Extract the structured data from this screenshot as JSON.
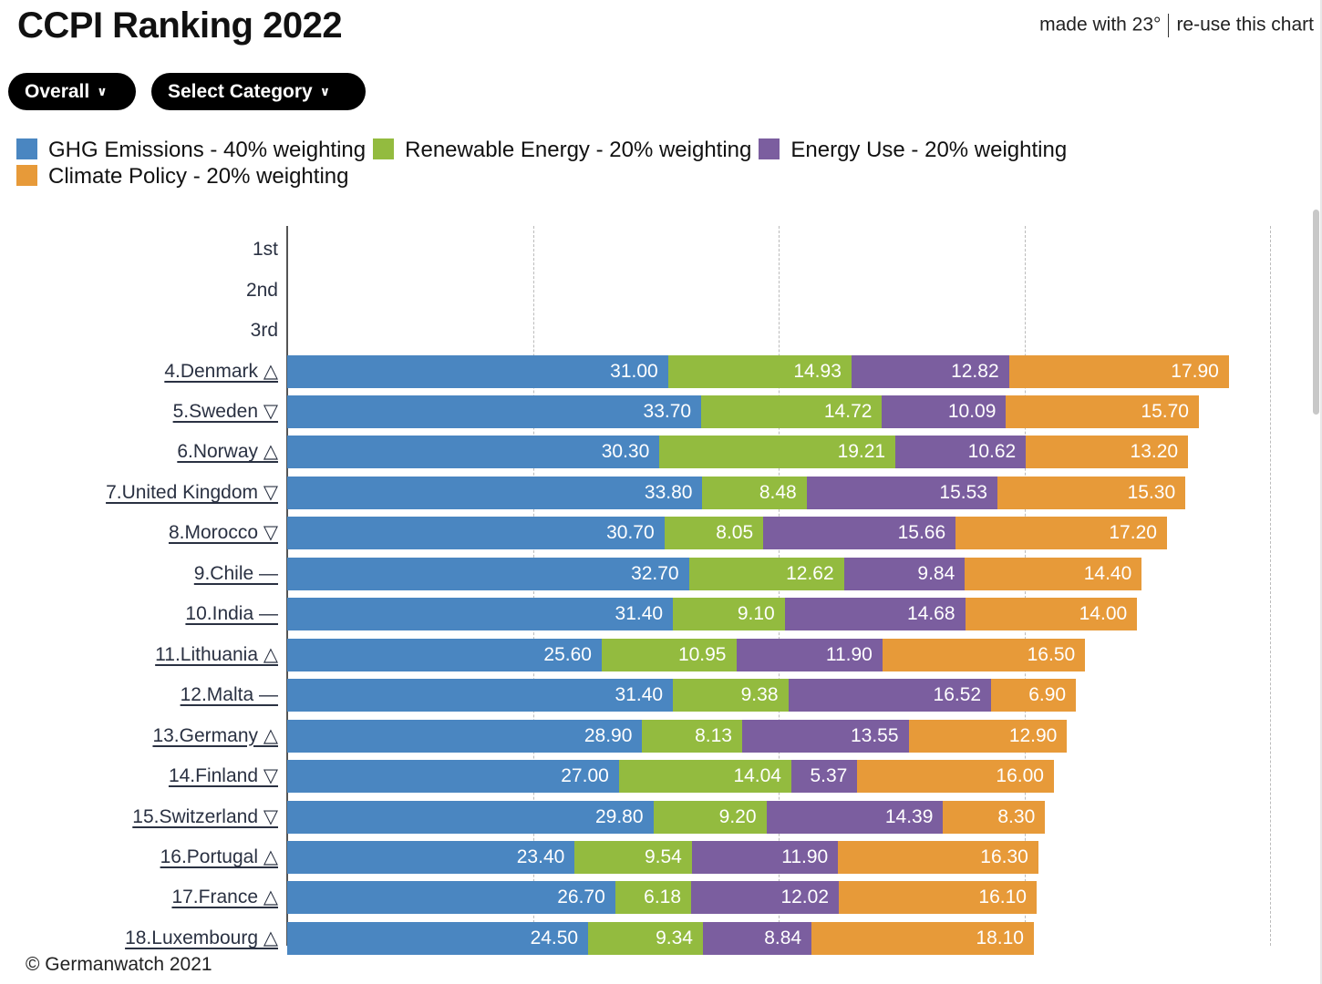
{
  "header": {
    "title": "CCPI Ranking 2022",
    "made_with": "made with 23°",
    "reuse": "re-use this chart"
  },
  "controls": {
    "overall": "Overall",
    "select_category": "Select Category",
    "chevron_icon": "chevron-down-icon"
  },
  "footer": {
    "copyright": "© Germanwatch 2021"
  },
  "colors": {
    "ghg": "#4a86c1",
    "renewable": "#93bb3f",
    "energy_use": "#7b5e9f",
    "climate_policy": "#e79a39"
  },
  "chart_data": {
    "type": "bar",
    "orientation": "horizontal",
    "stacked": true,
    "xlim": [
      0,
      80
    ],
    "grid_ticks": [
      20,
      40,
      60,
      80
    ],
    "grid": true,
    "legend_placement": "top-left",
    "series": [
      {
        "name": "GHG Emissions - 40% weighting",
        "color": "#4a86c1",
        "values": [
          null,
          null,
          null,
          31.0,
          33.7,
          30.3,
          33.8,
          30.7,
          32.7,
          31.4,
          25.6,
          31.4,
          28.9,
          27.0,
          29.8,
          23.4,
          26.7,
          24.5
        ]
      },
      {
        "name": "Renewable Energy - 20% weighting",
        "color": "#93bb3f",
        "values": [
          null,
          null,
          null,
          14.93,
          14.72,
          19.21,
          8.48,
          8.05,
          12.62,
          9.1,
          10.95,
          9.38,
          8.13,
          14.04,
          9.2,
          9.54,
          6.18,
          9.34
        ]
      },
      {
        "name": "Energy Use - 20% weighting",
        "color": "#7b5e9f",
        "values": [
          null,
          null,
          null,
          12.82,
          10.09,
          10.62,
          15.53,
          15.66,
          9.84,
          14.68,
          11.9,
          16.52,
          13.55,
          5.37,
          14.39,
          11.9,
          12.02,
          8.84
        ]
      },
      {
        "name": "Climate Policy - 20% weighting",
        "color": "#e79a39",
        "values": [
          null,
          null,
          null,
          17.9,
          15.7,
          13.2,
          15.3,
          17.2,
          14.4,
          14.0,
          16.5,
          6.9,
          12.9,
          16.0,
          8.3,
          16.3,
          16.1,
          18.1
        ]
      }
    ],
    "value_labels": [
      [
        null,
        null,
        null
      ],
      [
        null,
        null,
        null
      ],
      [
        null,
        null,
        null
      ],
      [
        "31.00",
        "14.93",
        "12.82",
        "17.90"
      ],
      [
        "33.70",
        "14.72",
        "10.09",
        "15.70"
      ],
      [
        "30.30",
        "19.21",
        "10.62",
        "13.20"
      ],
      [
        "33.80",
        "8.48",
        "15.53",
        "15.30"
      ],
      [
        "30.70",
        "8.05",
        "15.66",
        "17.20"
      ],
      [
        "32.70",
        "12.62",
        "9.84",
        "14.40"
      ],
      [
        "31.40",
        "9.10",
        "14.68",
        "14.00"
      ],
      [
        "25.60",
        "10.95",
        "11.90",
        "16.50"
      ],
      [
        "31.40",
        "9.38",
        "16.52",
        "6.90"
      ],
      [
        "28.90",
        "8.13",
        "13.55",
        "12.90"
      ],
      [
        "27.00",
        "14.04",
        "5.37",
        "16.00"
      ],
      [
        "29.80",
        "9.20",
        "14.39",
        "8.30"
      ],
      [
        "23.40",
        "9.54",
        "11.90",
        "16.30"
      ],
      [
        "26.70",
        "6.18",
        "12.02",
        "16.10"
      ],
      [
        "24.50",
        "9.34",
        "8.84",
        "18.10"
      ]
    ],
    "categories": [
      "1st",
      "2nd",
      "3rd",
      "4.Denmark △",
      "5.Sweden ▽",
      "6.Norway △",
      "7.United Kingdom ▽",
      "8.Morocco ▽",
      "9.Chile —",
      "10.India —",
      "11.Lithuania △",
      "12.Malta —",
      "13.Germany △",
      "14.Finland ▽",
      "15.Switzerland ▽",
      "16.Portugal △",
      "17.France △",
      "18.Luxembourg △"
    ]
  }
}
